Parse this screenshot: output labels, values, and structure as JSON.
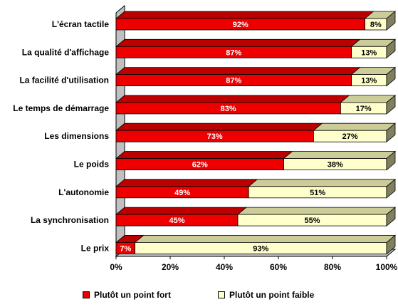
{
  "chart_data": {
    "type": "bar",
    "orientation": "horizontal",
    "stacked": true,
    "style": "3d",
    "categories": [
      "L'écran tactile",
      "La qualité d'affichage",
      "La facilité d'utilisation",
      "Le temps de démarrage",
      "Les dimensions",
      "Le poids",
      "L'autonomie",
      "La synchronisation",
      "Le prix"
    ],
    "series": [
      {
        "name": "Plutôt un point fort",
        "color": "#ee0000",
        "values": [
          92,
          87,
          87,
          83,
          73,
          62,
          49,
          45,
          7
        ]
      },
      {
        "name": "Plutôt un point faible",
        "color": "#ffffcc",
        "values": [
          8,
          13,
          13,
          17,
          27,
          38,
          51,
          55,
          93
        ]
      }
    ],
    "value_labels": [
      [
        "92%",
        "87%",
        "87%",
        "83%",
        "73%",
        "62%",
        "49%",
        "45%",
        "7%"
      ],
      [
        "8%",
        "13%",
        "13%",
        "17%",
        "27%",
        "38%",
        "51%",
        "55%",
        "93%"
      ]
    ],
    "x_ticks": [
      "0%",
      "20%",
      "40%",
      "60%",
      "80%",
      "100%"
    ],
    "xlim": [
      0,
      100
    ],
    "grid": false,
    "legend_position": "bottom"
  },
  "legend": {
    "items": [
      {
        "label": "Plutôt un point fort",
        "color": "#ee0000"
      },
      {
        "label": "Plutôt un point faible",
        "color": "#ffffcc"
      }
    ]
  }
}
